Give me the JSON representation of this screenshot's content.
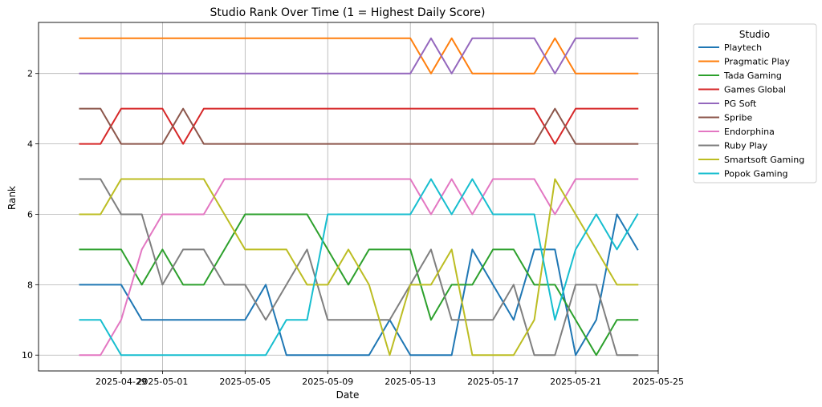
{
  "chart_data": {
    "type": "line",
    "title": "Studio Rank Over Time (1 = Highest Daily Score)",
    "xlabel": "Date",
    "ylabel": "Rank",
    "x_start": "2025-04-27",
    "xlim": [
      "2025-04-25",
      "2025-05-25"
    ],
    "ylim": [
      10.45,
      0.55
    ],
    "y_inverted": true,
    "x_ticks": [
      "2025-04-29",
      "2025-05-01",
      "2025-05-05",
      "2025-05-09",
      "2025-05-13",
      "2025-05-17",
      "2025-05-21",
      "2025-05-25"
    ],
    "y_ticks": [
      2,
      4,
      6,
      8,
      10
    ],
    "grid": true,
    "legend": {
      "title": "Studio",
      "position": "outside-right"
    },
    "series": [
      {
        "name": "Playtech",
        "color": "#1f77b4",
        "values": [
          8,
          8,
          8,
          9,
          9,
          9,
          9,
          9,
          9,
          8,
          10,
          10,
          10,
          10,
          10,
          9,
          10,
          10,
          10,
          7,
          8,
          9,
          7,
          7,
          10,
          9,
          6,
          7
        ]
      },
      {
        "name": "Pragmatic Play",
        "color": "#ff7f0e",
        "values": [
          1,
          1,
          1,
          1,
          1,
          1,
          1,
          1,
          1,
          1,
          1,
          1,
          1,
          1,
          1,
          1,
          1,
          2,
          1,
          2,
          2,
          2,
          2,
          1,
          2,
          2,
          2,
          2
        ]
      },
      {
        "name": "Tada Gaming",
        "color": "#2ca02c",
        "values": [
          7,
          7,
          7,
          8,
          7,
          8,
          8,
          7,
          6,
          6,
          6,
          6,
          7,
          8,
          7,
          7,
          7,
          9,
          8,
          8,
          7,
          7,
          8,
          8,
          9,
          10,
          9,
          9
        ]
      },
      {
        "name": "Games Global",
        "color": "#d62728",
        "values": [
          4,
          4,
          3,
          3,
          3,
          4,
          3,
          3,
          3,
          3,
          3,
          3,
          3,
          3,
          3,
          3,
          3,
          3,
          3,
          3,
          3,
          3,
          3,
          4,
          3,
          3,
          3,
          3
        ]
      },
      {
        "name": "PG Soft",
        "color": "#9467bd",
        "values": [
          2,
          2,
          2,
          2,
          2,
          2,
          2,
          2,
          2,
          2,
          2,
          2,
          2,
          2,
          2,
          2,
          2,
          1,
          2,
          1,
          1,
          1,
          1,
          2,
          1,
          1,
          1,
          1
        ]
      },
      {
        "name": "Spribe",
        "color": "#8c564b",
        "values": [
          3,
          3,
          4,
          4,
          4,
          3,
          4,
          4,
          4,
          4,
          4,
          4,
          4,
          4,
          4,
          4,
          4,
          4,
          4,
          4,
          4,
          4,
          4,
          3,
          4,
          4,
          4,
          4
        ]
      },
      {
        "name": "Endorphina",
        "color": "#e377c2",
        "values": [
          10,
          10,
          9,
          7,
          6,
          6,
          6,
          5,
          5,
          5,
          5,
          5,
          5,
          5,
          5,
          5,
          5,
          6,
          5,
          6,
          5,
          5,
          5,
          6,
          5,
          5,
          5,
          5
        ]
      },
      {
        "name": "Ruby Play",
        "color": "#7f7f7f",
        "values": [
          5,
          5,
          6,
          6,
          8,
          7,
          7,
          8,
          8,
          9,
          8,
          7,
          9,
          9,
          9,
          9,
          8,
          7,
          9,
          9,
          9,
          8,
          10,
          10,
          8,
          8,
          10,
          10
        ]
      },
      {
        "name": "Smartsoft Gaming",
        "color": "#bcbd22",
        "values": [
          6,
          6,
          5,
          5,
          5,
          5,
          5,
          6,
          7,
          7,
          7,
          8,
          8,
          7,
          8,
          10,
          8,
          8,
          7,
          10,
          10,
          10,
          9,
          5,
          6,
          7,
          8,
          8
        ]
      },
      {
        "name": "Popok Gaming",
        "color": "#17becf",
        "values": [
          9,
          9,
          10,
          10,
          10,
          10,
          10,
          10,
          10,
          10,
          9,
          9,
          6,
          6,
          6,
          6,
          6,
          5,
          6,
          5,
          6,
          6,
          6,
          9,
          7,
          6,
          7,
          6
        ]
      }
    ]
  }
}
